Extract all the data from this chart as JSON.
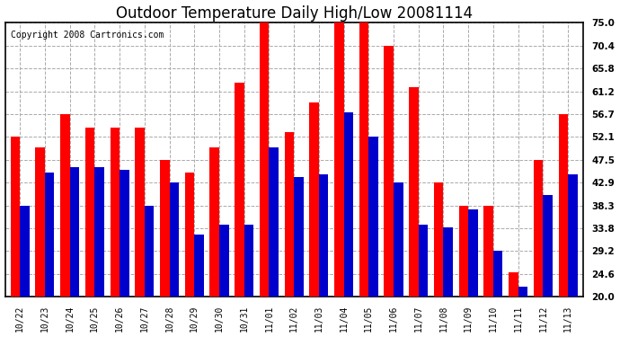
{
  "title": "Outdoor Temperature Daily High/Low 20081114",
  "copyright": "Copyright 2008 Cartronics.com",
  "categories": [
    "10/22",
    "10/23",
    "10/24",
    "10/25",
    "10/26",
    "10/27",
    "10/28",
    "10/29",
    "10/30",
    "10/31",
    "11/01",
    "11/02",
    "11/03",
    "11/04",
    "11/05",
    "11/06",
    "11/07",
    "11/08",
    "11/09",
    "11/10",
    "11/11",
    "11/12",
    "11/13"
  ],
  "highs": [
    52.1,
    50.0,
    56.7,
    54.0,
    54.0,
    54.0,
    47.5,
    45.0,
    50.0,
    63.0,
    75.0,
    53.0,
    59.0,
    75.0,
    75.0,
    70.4,
    62.0,
    42.9,
    38.3,
    38.3,
    25.0,
    47.5,
    56.7
  ],
  "lows": [
    38.3,
    45.0,
    46.0,
    46.0,
    45.5,
    38.3,
    42.9,
    32.5,
    34.5,
    34.5,
    50.0,
    44.0,
    44.5,
    57.0,
    52.1,
    42.9,
    34.5,
    34.0,
    37.5,
    29.2,
    22.0,
    40.5,
    44.5
  ],
  "high_color": "#ff0000",
  "low_color": "#0000cc",
  "background_color": "#ffffff",
  "plot_bg_color": "#ffffff",
  "grid_color": "#aaaaaa",
  "ymin": 20.0,
  "ylim": [
    20.0,
    75.0
  ],
  "yticks": [
    20.0,
    24.6,
    29.2,
    33.8,
    38.3,
    42.9,
    47.5,
    52.1,
    56.7,
    61.2,
    65.8,
    70.4,
    75.0
  ],
  "title_fontsize": 12,
  "copyright_fontsize": 7,
  "bar_width": 0.38
}
